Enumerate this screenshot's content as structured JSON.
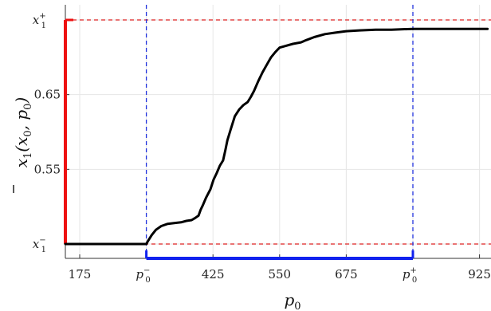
{
  "chart_data": {
    "type": "line",
    "title": "",
    "xlabel": {
      "base": "p",
      "sub": "0"
    },
    "ylabel": {
      "bar": "x",
      "sub": "1",
      "args": "(x",
      "args_sub": "0",
      "args_rest": ", p",
      "args_sub2": "0",
      "close": ")"
    },
    "xlim": [
      140,
      940
    ],
    "ylim": [
      0.438,
      0.736
    ],
    "grid": true,
    "x_ticks": [
      {
        "value": 175,
        "label": "175",
        "kind": "num"
      },
      {
        "value": 300,
        "label": "p",
        "kind": "sym",
        "sub": "0",
        "sup": "−"
      },
      {
        "value": 425,
        "label": "425",
        "kind": "num"
      },
      {
        "value": 550,
        "label": "550",
        "kind": "num"
      },
      {
        "value": 675,
        "label": "675",
        "kind": "num"
      },
      {
        "value": 800,
        "label": "p",
        "kind": "sym",
        "sub": "0",
        "sup": "+"
      },
      {
        "value": 925,
        "label": "925",
        "kind": "num"
      }
    ],
    "y_ticks": [
      {
        "value": 0.45,
        "label": "x",
        "kind": "sym",
        "sub": "1",
        "sup": "−"
      },
      {
        "value": 0.55,
        "label": "0.55",
        "kind": "num"
      },
      {
        "value": 0.65,
        "label": "0.65",
        "kind": "num"
      },
      {
        "value": 0.75,
        "label": "x",
        "kind": "sym",
        "sub": "1",
        "sup": "+"
      }
    ],
    "series": [
      {
        "color": "#000000",
        "x": [
          140,
          200,
          260,
          300,
          303,
          310,
          318,
          328,
          340,
          352,
          365,
          375,
          385,
          392,
          398,
          402,
          406,
          412,
          420,
          426,
          432,
          438,
          444,
          448,
          452,
          458,
          466,
          474,
          482,
          490,
          496,
          502,
          510,
          518,
          526,
          534,
          542,
          550,
          560,
          575,
          590,
          600,
          615,
          635,
          655,
          675,
          700,
          730,
          760,
          800,
          830,
          870,
          940
        ],
        "y": [
          0.45,
          0.45,
          0.45,
          0.45,
          0.454,
          0.462,
          0.469,
          0.474,
          0.477,
          0.478,
          0.479,
          0.481,
          0.482,
          0.485,
          0.488,
          0.496,
          0.502,
          0.512,
          0.523,
          0.536,
          0.545,
          0.555,
          0.562,
          0.575,
          0.589,
          0.603,
          0.621,
          0.63,
          0.636,
          0.64,
          0.647,
          0.655,
          0.668,
          0.68,
          0.69,
          0.7,
          0.707,
          0.713,
          0.715,
          0.718,
          0.72,
          0.723,
          0.727,
          0.731,
          0.733,
          0.735,
          0.736,
          0.737,
          0.737,
          0.738,
          0.738,
          0.738,
          0.738
        ]
      }
    ],
    "reference_lines": {
      "horizontal": [
        {
          "value": 0.45,
          "color": "#dd2222"
        },
        {
          "value": 0.75,
          "color": "#dd2222"
        }
      ],
      "vertical": [
        {
          "value": 300,
          "color": "#2233dd"
        },
        {
          "value": 800,
          "color": "#2233dd"
        }
      ]
    },
    "intervals": {
      "y_range": {
        "from": 0.45,
        "to": 0.75,
        "color": "#ee1111"
      },
      "x_range": {
        "from": 300,
        "to": 800,
        "color": "#1122ee"
      }
    }
  }
}
